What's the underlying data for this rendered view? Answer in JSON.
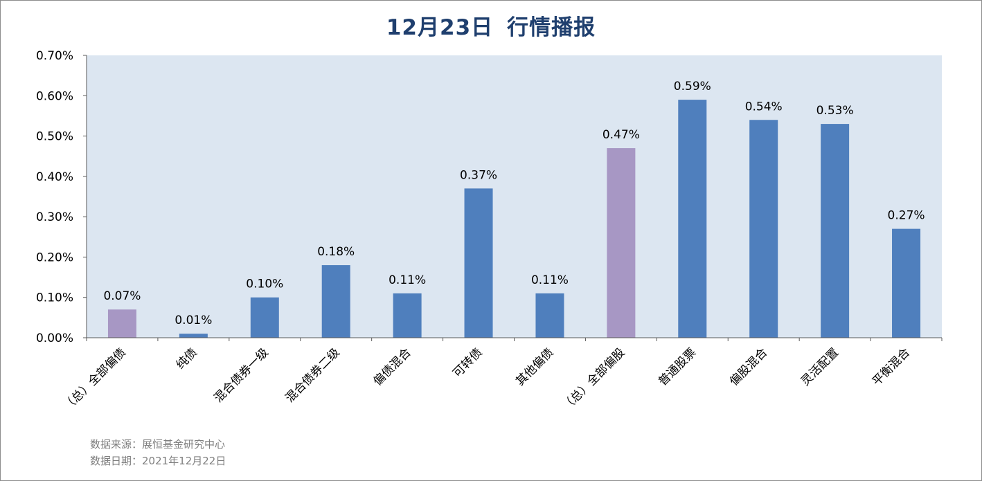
{
  "title": {
    "date": "12月23日",
    "text": "行情播报"
  },
  "source": {
    "line1": "数据来源：展恒基金研究中心",
    "line2": "数据日期：2021年12月22日"
  },
  "colors": {
    "plot_bg": "#dce6f1",
    "bar_blue": "#4f7fbd",
    "bar_purple": "#a797c4",
    "axis": "#595959"
  },
  "chart_data": {
    "type": "bar",
    "title": "12月23日 行情播报",
    "categories": [
      "（总）全部偏债",
      "纯债",
      "混合债券一级",
      "混合债券二级",
      "偏债混合",
      "可转债",
      "其他偏债",
      "（总）全部偏股",
      "普通股票",
      "偏股混合",
      "灵活配置",
      "平衡混合"
    ],
    "values": [
      0.07,
      0.01,
      0.1,
      0.18,
      0.11,
      0.37,
      0.11,
      0.47,
      0.59,
      0.54,
      0.53,
      0.27
    ],
    "data_labels": [
      "0.07%",
      "0.01%",
      "0.10%",
      "0.18%",
      "0.11%",
      "0.37%",
      "0.11%",
      "0.47%",
      "0.59%",
      "0.54%",
      "0.53%",
      "0.27%"
    ],
    "highlight": [
      true,
      false,
      false,
      false,
      false,
      false,
      false,
      true,
      false,
      false,
      false,
      false
    ],
    "ylim": [
      0,
      0.7
    ],
    "yticks": [
      "0.00%",
      "0.10%",
      "0.20%",
      "0.30%",
      "0.40%",
      "0.50%",
      "0.60%",
      "0.70%"
    ],
    "xlabel": "",
    "ylabel": "",
    "grid": false
  }
}
